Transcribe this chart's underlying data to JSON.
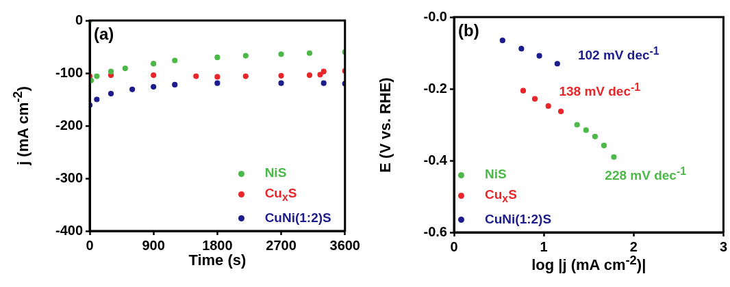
{
  "chart_data": [
    {
      "type": "scatter",
      "xlabel": "Time (s)",
      "ylabel": "j (mA cm$^{-2}$)",
      "xlim": [
        0,
        3600
      ],
      "xticks": [
        0,
        900,
        1800,
        2700,
        3600
      ],
      "ylim": [
        -400,
        0
      ],
      "yticks": [
        0,
        -100,
        -200,
        -300,
        -400
      ],
      "grid": false,
      "legend": "bottom right",
      "marker": "circle",
      "annotations": [
        "(a)"
      ],
      "series": [
        {
          "name": "NiS",
          "color": "#4cb848",
          "x": [
            0,
            20,
            100,
            300,
            500,
            900,
            1200,
            1800,
            2200,
            2700,
            3100,
            3600
          ],
          "values": [
            0,
            -114,
            -106,
            -97,
            -91,
            -82,
            -76,
            -70,
            -67,
            -64,
            -62,
            -60
          ]
        },
        {
          "name": "Cu$_{x}$S",
          "color": "#e8262a",
          "x": [
            0,
            300,
            900,
            1500,
            1800,
            2200,
            2700,
            3100,
            3250,
            3300,
            3600
          ],
          "values": [
            -106,
            -104,
            -104,
            -106,
            -107,
            -106,
            -105,
            -104,
            -103,
            -97,
            -96
          ]
        },
        {
          "name": "CuNi(1:2)S",
          "color": "#1c1c8c",
          "x": [
            0,
            100,
            300,
            600,
            900,
            1200,
            1800,
            2700,
            3300,
            3600
          ],
          "values": [
            -161,
            -150,
            -139,
            -131,
            -126,
            -122,
            -119,
            -119,
            -119,
            -120
          ]
        }
      ]
    },
    {
      "type": "scatter",
      "xlabel": "log |j (mA cm$^{-2}$)|",
      "ylabel": "E (V vs. RHE)",
      "xlim": [
        0,
        3
      ],
      "xticks": [
        0,
        1,
        2,
        3
      ],
      "ylim": [
        -0.6,
        0
      ],
      "yticks": [
        {
          "value": 0,
          "label": "-0.0"
        },
        -0.2,
        -0.4,
        -0.6
      ],
      "grid": false,
      "legend": "bottom left",
      "marker": "circle",
      "annotations": [
        "(b)",
        "102 mV dec$^{-1}$",
        "138 mV dec$^{-1}$",
        "228 mV dec$^{-1}$"
      ],
      "series": [
        {
          "name": "NiS",
          "color": "#4cb848",
          "x": [
            1.37,
            1.47,
            1.57,
            1.67,
            1.78
          ],
          "values": [
            -0.3,
            -0.315,
            -0.333,
            -0.358,
            -0.39
          ]
        },
        {
          "name": "Cu$_{x}$S",
          "color": "#e8262a",
          "x": [
            0.77,
            0.9,
            1.05,
            1.19
          ],
          "values": [
            -0.205,
            -0.228,
            -0.248,
            -0.263
          ]
        },
        {
          "name": "CuNi(1:2)S",
          "color": "#1c1c8c",
          "x": [
            0.54,
            0.75,
            0.95,
            1.15
          ],
          "values": [
            -0.065,
            -0.088,
            -0.108,
            -0.13
          ]
        }
      ]
    }
  ]
}
